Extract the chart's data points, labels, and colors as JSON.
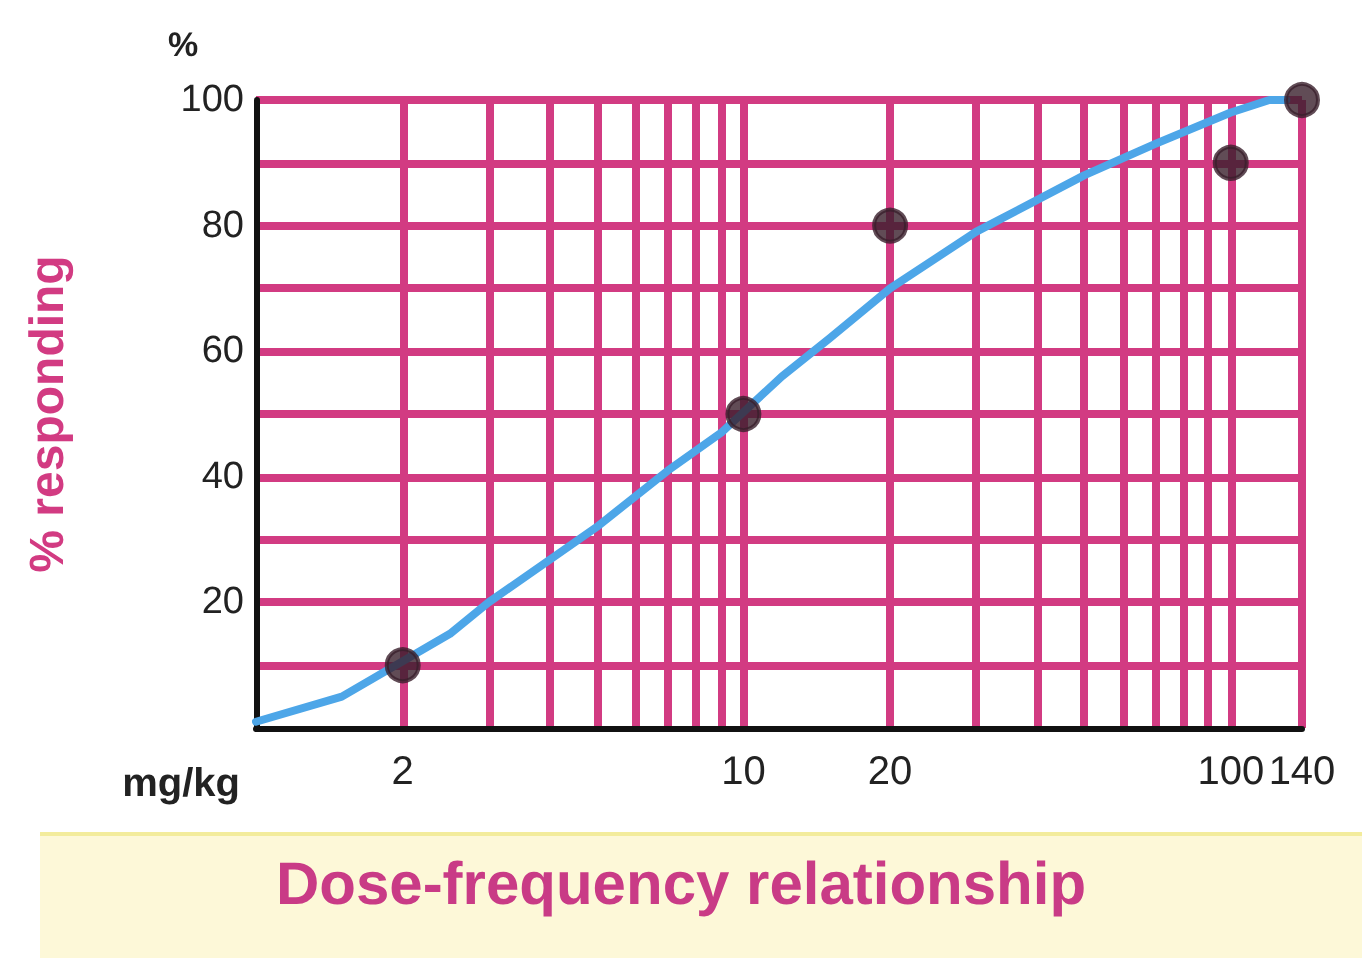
{
  "chart_data": {
    "type": "scatter",
    "title": "Dose-frequency relationship",
    "xlabel": "mg/kg",
    "ylabel": "% responding",
    "annotations": [
      "%"
    ],
    "log": "x",
    "grid": true,
    "marker": "circle",
    "xlim": [
      1,
      140
    ],
    "ylim": [
      0,
      100
    ],
    "xticks": [
      {
        "value": 2,
        "label": "2"
      },
      {
        "value": 3,
        "label": null
      },
      {
        "value": 4,
        "label": null
      },
      {
        "value": 5,
        "label": null
      },
      {
        "value": 6,
        "label": null
      },
      {
        "value": 7,
        "label": null
      },
      {
        "value": 8,
        "label": null
      },
      {
        "value": 9,
        "label": null
      },
      {
        "value": 10,
        "label": "10"
      },
      {
        "value": 20,
        "label": "20"
      },
      {
        "value": 30,
        "label": null
      },
      {
        "value": 40,
        "label": null
      },
      {
        "value": 50,
        "label": null
      },
      {
        "value": 60,
        "label": null
      },
      {
        "value": 70,
        "label": null
      },
      {
        "value": 80,
        "label": null
      },
      {
        "value": 90,
        "label": null
      },
      {
        "value": 100,
        "label": "100"
      },
      {
        "value": 140,
        "label": "140"
      }
    ],
    "yticks": [
      {
        "value": 10,
        "label": null
      },
      20,
      {
        "value": 30,
        "label": null
      },
      40,
      {
        "value": 50,
        "label": null
      },
      60,
      {
        "value": 70,
        "label": null
      },
      80,
      {
        "value": 90,
        "label": null
      },
      100
    ],
    "series": [
      {
        "type": "line",
        "marker": "none",
        "color": "#4da6e8",
        "x": [
          1,
          1.5,
          2.5,
          3,
          5,
          7,
          9,
          12,
          15,
          20,
          30,
          50,
          70,
          100,
          120,
          130
        ],
        "values": [
          1,
          5,
          15,
          20,
          32,
          41,
          47,
          56,
          62,
          70,
          79,
          88,
          93,
          98,
          100,
          100
        ]
      },
      {
        "color": "#3a1f2c",
        "x": [
          2,
          10,
          20,
          100,
          140
        ],
        "values": [
          10,
          50,
          80,
          90,
          100
        ]
      }
    ]
  }
}
